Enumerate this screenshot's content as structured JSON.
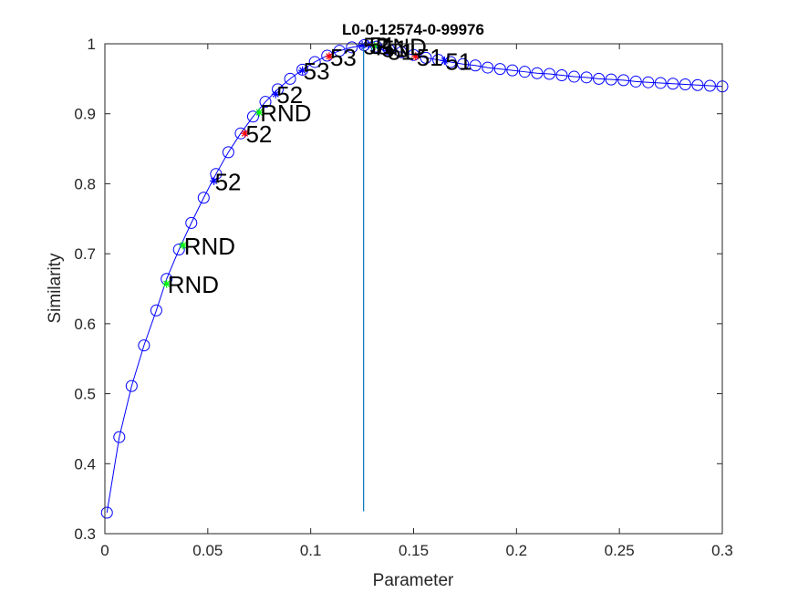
{
  "chart_data": {
    "type": "line",
    "title": "L0-0-12574-0-99976",
    "xlabel": "Parameter",
    "ylabel": "Similarity",
    "xlim": [
      0,
      0.3
    ],
    "ylim": [
      0.3,
      1
    ],
    "xticks": [
      0,
      0.05,
      0.1,
      0.15,
      0.2,
      0.25,
      0.3
    ],
    "xtick_labels": [
      "0",
      "0.05",
      "0.1",
      "0.15",
      "0.2",
      "0.25",
      "0.3"
    ],
    "yticks": [
      0.3,
      0.4,
      0.5,
      0.6,
      0.7,
      0.8,
      0.9,
      1
    ],
    "ytick_labels": [
      "0.3",
      "0.4",
      "0.5",
      "0.6",
      "0.7",
      "0.8",
      "0.9",
      "1"
    ],
    "grid": false,
    "legend": "none",
    "colors": {
      "curve": "#0000ff",
      "vline": "#0072bd",
      "blue_star": "#0000ff",
      "red_star": "#ff0000",
      "green_star": "#00ff00",
      "label": "#000000"
    },
    "curve": {
      "x": [
        0.001,
        0.007,
        0.013,
        0.019,
        0.025,
        0.03,
        0.036,
        0.042,
        0.048,
        0.054,
        0.06,
        0.066,
        0.072,
        0.078,
        0.084,
        0.09,
        0.096,
        0.102,
        0.108,
        0.114,
        0.12,
        0.126,
        0.132,
        0.138,
        0.144,
        0.15,
        0.156,
        0.162,
        0.168,
        0.174,
        0.18,
        0.186,
        0.192,
        0.198,
        0.204,
        0.21,
        0.216,
        0.222,
        0.228,
        0.234,
        0.24,
        0.246,
        0.252,
        0.258,
        0.264,
        0.27,
        0.276,
        0.282,
        0.288,
        0.294,
        0.3
      ],
      "y": [
        0.33,
        0.438,
        0.511,
        0.569,
        0.619,
        0.664,
        0.706,
        0.744,
        0.78,
        0.814,
        0.845,
        0.872,
        0.896,
        0.917,
        0.935,
        0.95,
        0.963,
        0.974,
        0.983,
        0.99,
        0.995,
        0.998,
        0.996,
        0.992,
        0.988,
        0.984,
        0.98,
        0.977,
        0.974,
        0.971,
        0.969,
        0.966,
        0.964,
        0.962,
        0.96,
        0.958,
        0.957,
        0.955,
        0.953,
        0.952,
        0.95,
        0.949,
        0.948,
        0.946,
        0.945,
        0.944,
        0.943,
        0.942,
        0.941,
        0.94,
        0.939
      ]
    },
    "vline": {
      "x": 0.1257,
      "y_from": 0.332,
      "y_to": 1.0
    },
    "markers": [
      {
        "x": 0.03,
        "y": 0.657,
        "color": "green",
        "label": "RND"
      },
      {
        "x": 0.038,
        "y": 0.712,
        "color": "green",
        "label": "RND"
      },
      {
        "x": 0.053,
        "y": 0.804,
        "color": "blue",
        "label": "52"
      },
      {
        "x": 0.068,
        "y": 0.872,
        "color": "red",
        "label": "52"
      },
      {
        "x": 0.075,
        "y": 0.902,
        "color": "green",
        "label": "RND"
      },
      {
        "x": 0.083,
        "y": 0.928,
        "color": "blue",
        "label": "52"
      },
      {
        "x": 0.096,
        "y": 0.962,
        "color": "blue",
        "label": "53"
      },
      {
        "x": 0.109,
        "y": 0.982,
        "color": "red",
        "label": "53"
      },
      {
        "x": 0.125,
        "y": 0.998,
        "color": "blue",
        "label": "53"
      },
      {
        "x": 0.128,
        "y": 0.999,
        "color": "blue",
        "label": "51"
      },
      {
        "x": 0.131,
        "y": 0.997,
        "color": "green",
        "label": "RND"
      },
      {
        "x": 0.134,
        "y": 0.994,
        "color": "blue",
        "label": "51"
      },
      {
        "x": 0.137,
        "y": 0.99,
        "color": "blue",
        "label": "51"
      },
      {
        "x": 0.151,
        "y": 0.982,
        "color": "red",
        "label": "51"
      },
      {
        "x": 0.165,
        "y": 0.976,
        "color": "blue",
        "label": "51"
      }
    ]
  }
}
